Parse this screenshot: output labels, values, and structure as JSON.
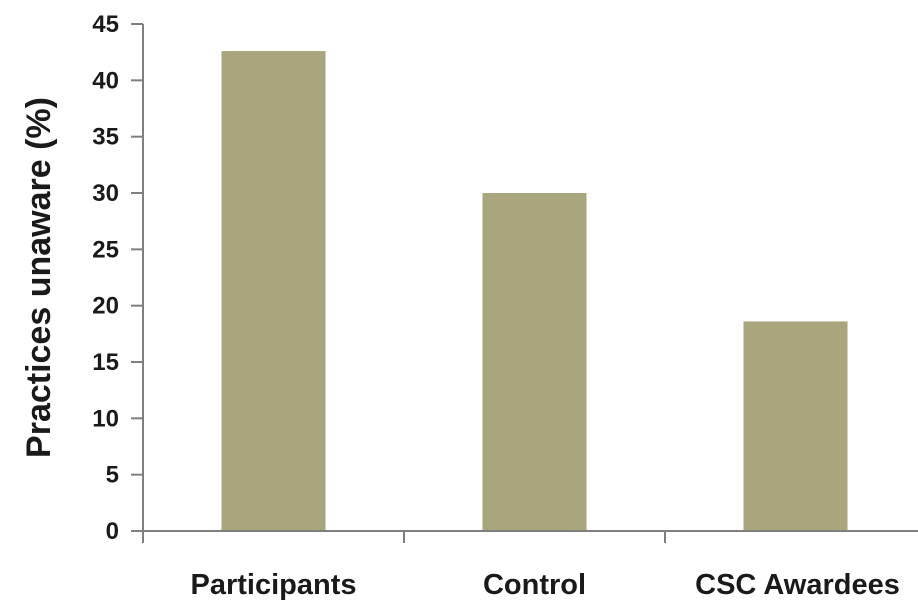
{
  "chart_data": {
    "type": "bar",
    "categories": [
      "Participants",
      "Control",
      "CSC Awardees"
    ],
    "values": [
      42.6,
      30.0,
      18.6
    ],
    "title": "",
    "xlabel": "",
    "ylabel": "Practices unaware (%)",
    "ylim": [
      0,
      45
    ],
    "yticks": [
      0,
      5,
      10,
      15,
      20,
      25,
      30,
      35,
      40,
      45
    ],
    "grid": false,
    "legend": "none",
    "bar_color": "#a9a57c",
    "axis_color": "#7f7f7f"
  }
}
